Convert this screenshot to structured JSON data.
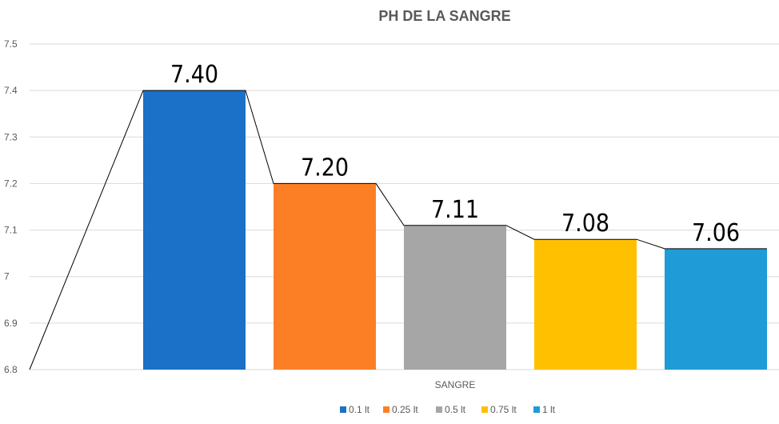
{
  "chart_data": {
    "type": "bar",
    "title": "PH DE LA SANGRE",
    "xlabel": "SANGRE",
    "ylabel": "",
    "ylim": [
      6.8,
      7.5
    ],
    "yticks": [
      "6.8",
      "6.9",
      "7",
      "7.1",
      "7.2",
      "7.3",
      "7.4",
      "7.5"
    ],
    "grid": true,
    "legend_position": "bottom",
    "series": [
      {
        "name": "0.1 lt",
        "value": 7.4,
        "label": "7.40",
        "color": "#1a71c7"
      },
      {
        "name": "0.25 lt",
        "value": 7.2,
        "label": "7.20",
        "color": "#fc7f26"
      },
      {
        "name": "0.5 lt",
        "value": 7.11,
        "label": "7.11",
        "color": "#a6a6a6"
      },
      {
        "name": "0.75 lt",
        "value": 7.08,
        "label": "7.08",
        "color": "#ffc000"
      },
      {
        "name": "1 lt",
        "value": 7.06,
        "label": "7.06",
        "color": "#1f9bd7"
      }
    ],
    "trend_line": {
      "start_value": 6.8
    }
  }
}
